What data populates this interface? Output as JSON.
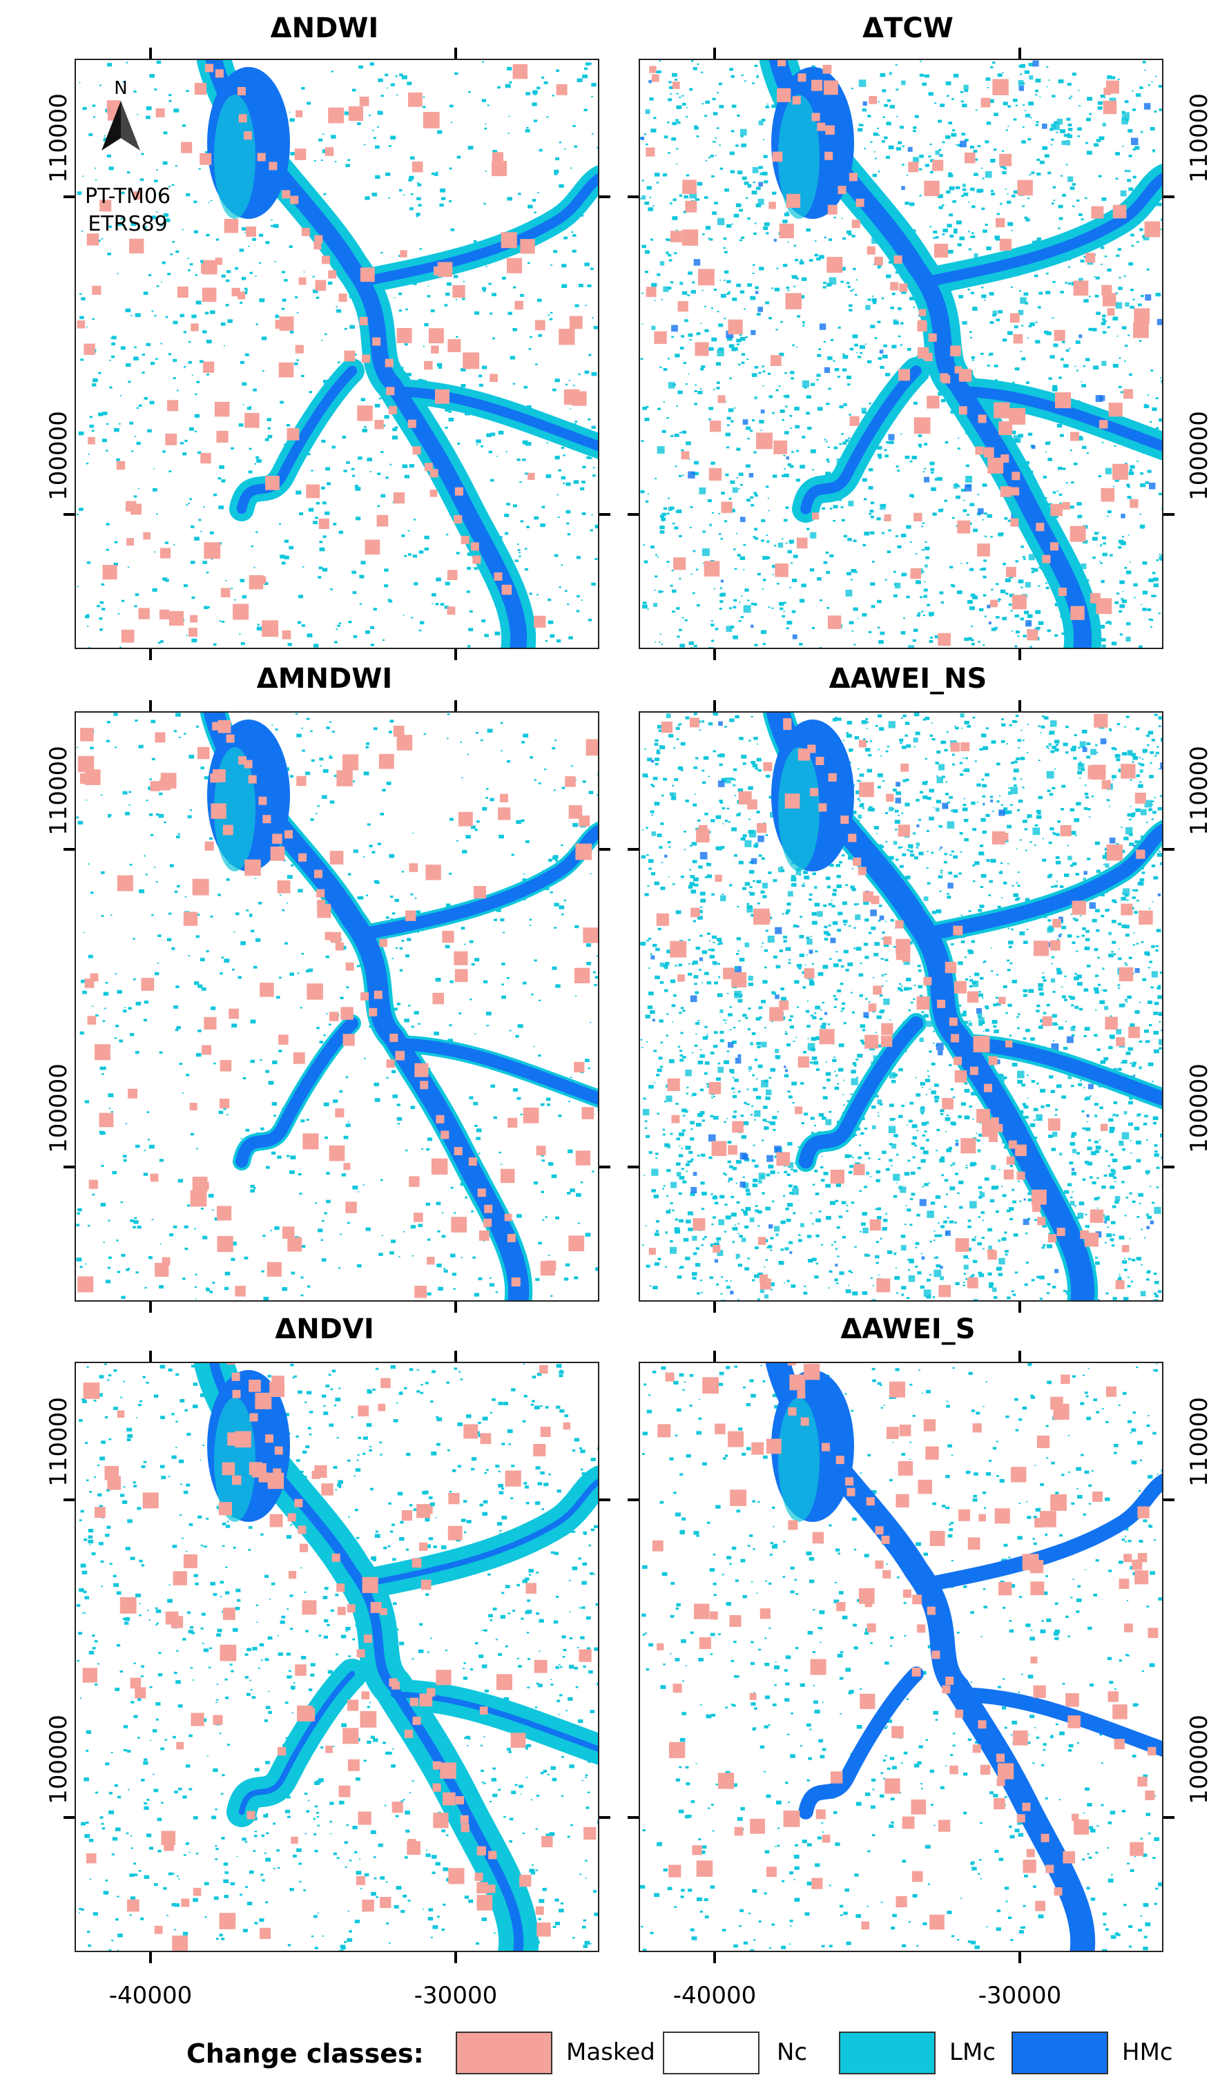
{
  "panels": [
    {
      "title": "ΔNDWI",
      "variant": "ndwi"
    },
    {
      "title": "ΔTCW",
      "variant": "tcw"
    },
    {
      "title": "ΔMNDWI",
      "variant": "mndwi"
    },
    {
      "title": "ΔAWEI_NS",
      "variant": "awei_ns"
    },
    {
      "title": "ΔNDVI",
      "variant": "ndvi"
    },
    {
      "title": "ΔAWEI_S",
      "variant": "awei_s"
    }
  ],
  "y_ticks": [
    "110000",
    "100000"
  ],
  "x_ticks": [
    "-40000",
    "-30000"
  ],
  "north_arrow": {
    "label": "N",
    "icon": "north-arrow-icon"
  },
  "crs": {
    "line1": "PT-TM06",
    "line2": "ETRS89"
  },
  "legend": {
    "title": "Change classes:",
    "items": [
      {
        "label": "Masked",
        "color": "#f4a29a"
      },
      {
        "label": "Nc",
        "color": "#ffffff"
      },
      {
        "label": "LMc",
        "color": "#0fc6dc"
      },
      {
        "label": "HMc",
        "color": "#1273f0"
      }
    ]
  },
  "colors": {
    "masked": "#f4a29a",
    "nc": "#ffffff",
    "lmc": "#0fc6dc",
    "hmc": "#1273f0"
  }
}
